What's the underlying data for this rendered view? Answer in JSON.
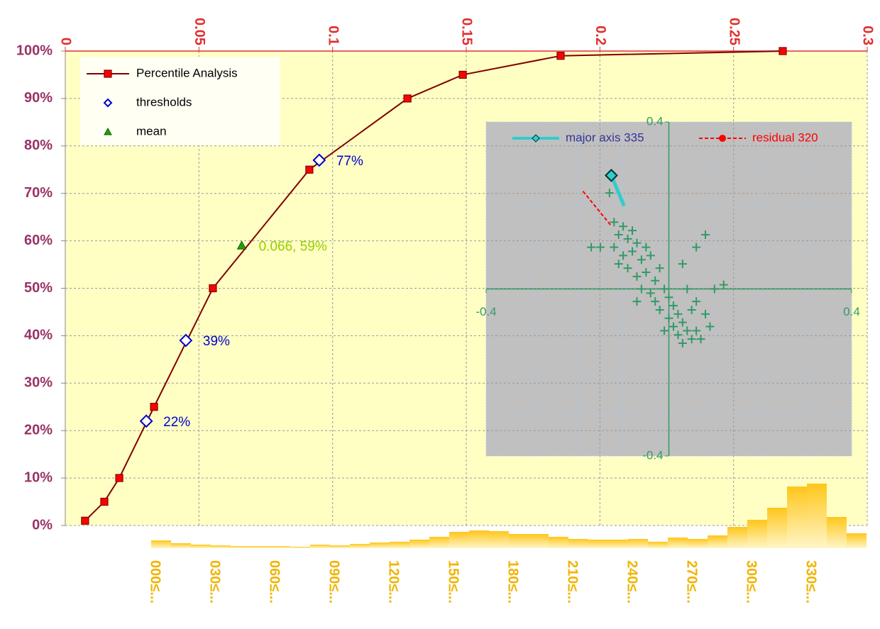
{
  "chart_data": [
    {
      "type": "line",
      "xlim": [
        0,
        0.3
      ],
      "xticks": [
        0,
        0.05,
        0.1,
        0.15,
        0.2,
        0.25,
        0.3
      ],
      "ylim": [
        0,
        100
      ],
      "yticks": [
        {
          "value": 0,
          "label": "0%"
        },
        {
          "value": 10,
          "label": "10%"
        },
        {
          "value": 20,
          "label": "20%"
        },
        {
          "value": 30,
          "label": "30%"
        },
        {
          "value": 40,
          "label": "40%"
        },
        {
          "value": 50,
          "label": "50%"
        },
        {
          "value": 60,
          "label": "60%"
        },
        {
          "value": 70,
          "label": "70%"
        },
        {
          "value": 80,
          "label": "80%"
        },
        {
          "value": 90,
          "label": "90%"
        },
        {
          "value": 100,
          "label": "100%"
        }
      ],
      "grid": true,
      "legend": "upper left",
      "series": [
        {
          "name": "Percentile Analysis",
          "color": "#800000",
          "marker": "square",
          "x": [
            0.0074,
            0.0146,
            0.0202,
            0.0332,
            0.0552,
            0.0913,
            0.128,
            0.1487,
            0.1853,
            0.2684
          ],
          "values": [
            1,
            5,
            10,
            25,
            50,
            75,
            90,
            95,
            99,
            100
          ]
        },
        {
          "name": "thresholds",
          "color": "#0000cc",
          "marker": "diamond",
          "x": [
            0.0303,
            0.0451,
            0.095
          ],
          "values": [
            22,
            39,
            77
          ],
          "value_labels": [
            "22%",
            "39%",
            "77%"
          ]
        },
        {
          "name": "mean",
          "color": "#339900",
          "label_color": "#99cc00",
          "marker": "triangle",
          "x": [
            0.066
          ],
          "values": [
            59
          ],
          "value_labels": [
            "0.066, 59%"
          ]
        }
      ]
    },
    {
      "type": "scatter",
      "xlim": [
        -0.4,
        0.4
      ],
      "xticks": [
        -0.4,
        0.4
      ],
      "ylim": [
        -0.4,
        0.4
      ],
      "yticks": [
        -0.4,
        0.4
      ],
      "legend": "top",
      "series": [
        {
          "name": "major axis 335",
          "color": "#33cccc",
          "x": [
            -0.126,
            -0.098
          ],
          "values": [
            0.272,
            0.199
          ]
        },
        {
          "name": "residual 320",
          "color": "#ff0000",
          "x": [
            -0.188,
            -0.126
          ],
          "values": [
            0.234,
            0.151
          ]
        },
        {
          "color": "#339966",
          "x": [
            -0.12,
            -0.11,
            -0.1,
            -0.09,
            -0.12,
            -0.08,
            -0.1,
            -0.07,
            -0.06,
            -0.09,
            -0.05,
            -0.07,
            -0.04,
            -0.03,
            -0.06,
            -0.02,
            -0.04,
            -0.01,
            -0.03,
            0.0,
            -0.02,
            0.01,
            0.02,
            0.0,
            0.03,
            0.01,
            0.04,
            0.02,
            0.05,
            0.03,
            0.06,
            0.07,
            -0.05,
            -0.08,
            -0.11,
            -0.15,
            -0.17,
            -0.13,
            0.08,
            0.06,
            0.1,
            0.12,
            0.06,
            0.08,
            0.04,
            -0.01,
            0.05,
            -0.07,
            0.03,
            0.09
          ],
          "values": [
            0.16,
            0.13,
            0.15,
            0.12,
            0.1,
            0.09,
            0.08,
            0.11,
            0.07,
            0.05,
            0.04,
            0.03,
            0.08,
            0.02,
            0.0,
            0.05,
            -0.01,
            0.0,
            -0.03,
            -0.02,
            -0.05,
            -0.04,
            -0.06,
            -0.07,
            -0.08,
            -0.09,
            -0.1,
            -0.11,
            -0.12,
            -0.13,
            -0.1,
            -0.12,
            0.1,
            0.14,
            0.06,
            0.1,
            0.1,
            0.23,
            0.13,
            0.1,
            0.0,
            0.01,
            -0.03,
            -0.06,
            0.0,
            -0.1,
            -0.05,
            -0.03,
            0.06,
            -0.09
          ]
        }
      ]
    },
    {
      "type": "bar",
      "categories": [
        "000≤...",
        null,
        null,
        "030≤...",
        null,
        null,
        "060≤...",
        null,
        null,
        "090≤...",
        null,
        null,
        "120≤...",
        null,
        null,
        "150≤...",
        null,
        null,
        "180≤...",
        null,
        null,
        "210≤...",
        null,
        null,
        "240≤...",
        null,
        null,
        "270≤...",
        null,
        null,
        "300≤...",
        null,
        null,
        "330≤...",
        null,
        null
      ],
      "values": [
        11,
        7,
        5,
        4,
        3,
        3,
        3,
        2,
        5,
        4,
        6,
        8,
        9,
        12,
        16,
        23,
        25,
        24,
        20,
        20,
        16,
        13,
        12,
        12,
        13,
        9,
        15,
        13,
        18,
        30,
        40,
        57,
        87,
        91,
        44,
        21
      ],
      "color": "#ffc61a"
    }
  ]
}
